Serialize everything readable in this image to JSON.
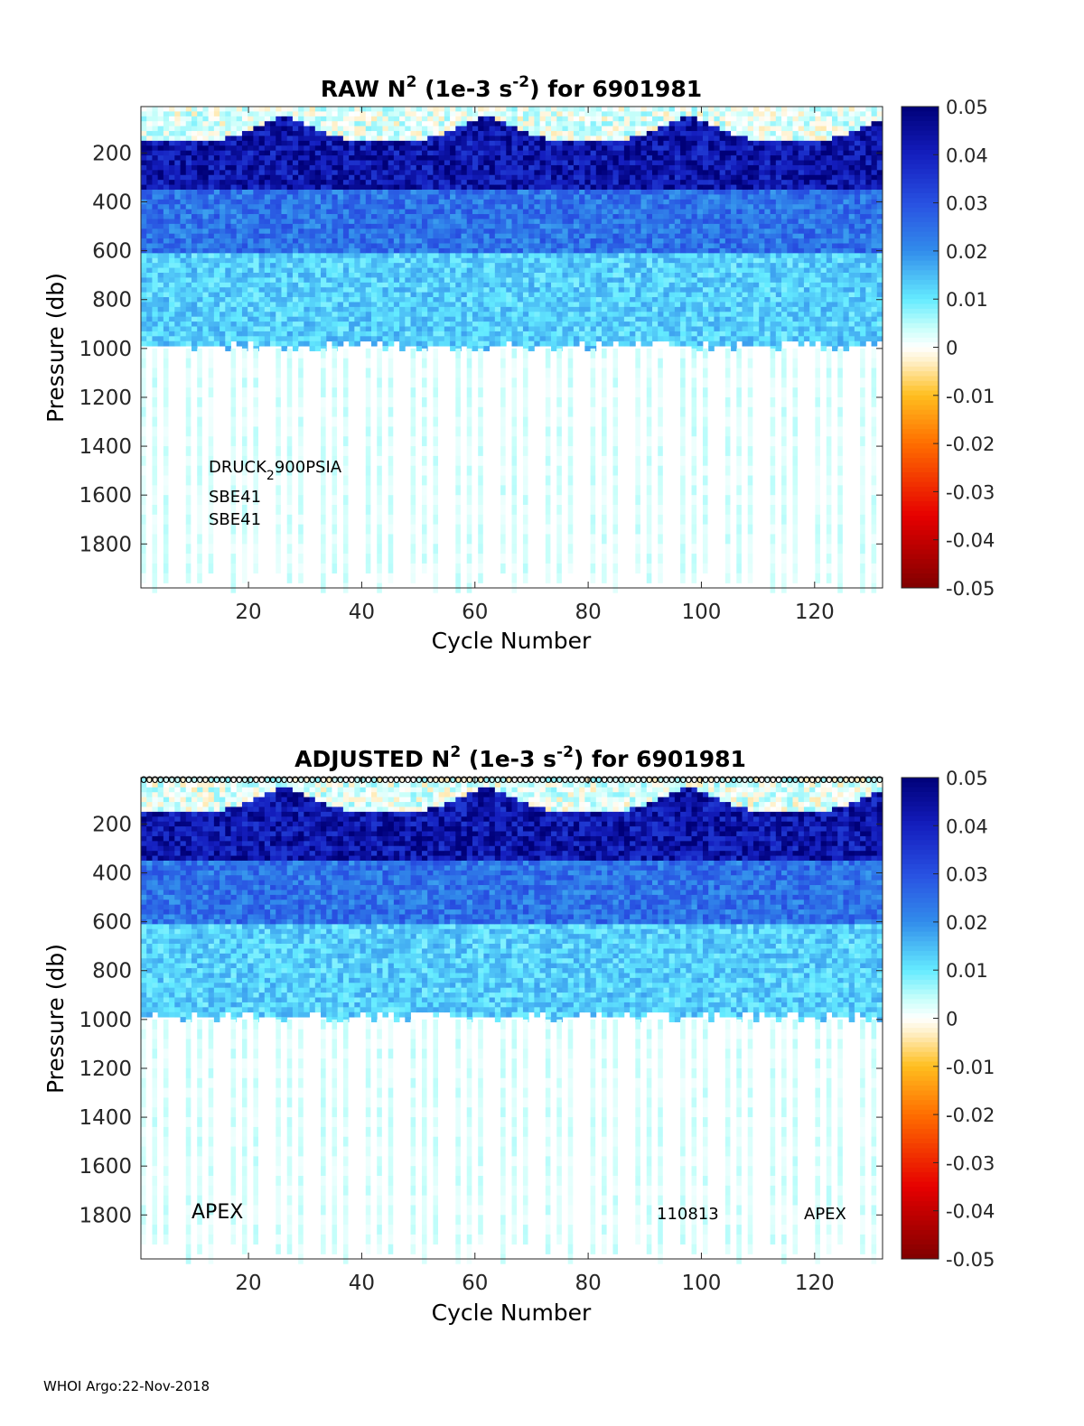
{
  "footer": "WHOI Argo:22-Nov-2018",
  "chart_data": [
    {
      "type": "heatmap",
      "title": {
        "prefix": "RAW N",
        "sup": "2",
        "mid": " (1e-3 s",
        "sup2": "-2",
        "suffix": ") for 6901981"
      },
      "xlabel": "Cycle Number",
      "ylabel": "Pressure (db)",
      "xlim": [
        1,
        132
      ],
      "ylim": [
        10,
        1980
      ],
      "x_ticks": [
        20,
        40,
        60,
        80,
        100,
        120
      ],
      "y_ticks": [
        200,
        400,
        600,
        800,
        1000,
        1200,
        1400,
        1600,
        1800
      ],
      "colorbar": {
        "min": -0.05,
        "max": 0.05,
        "ticks": [
          0.05,
          0.04,
          0.03,
          0.02,
          0.01,
          0,
          -0.01,
          -0.02,
          -0.03,
          -0.04,
          -0.05
        ],
        "colormap": "jet-white-center"
      },
      "profile_cycles_deep": "every 3-4 cycles",
      "annotations": {
        "sensor_p_main": "DRUCK",
        "sensor_p_sub": "2",
        "sensor_p_tail": "900PSIA",
        "sensor_t": "SBE41",
        "sensor_s": "SBE41"
      },
      "zones": [
        {
          "pmin": 10,
          "pmax": 100,
          "value_range": [
            -0.01,
            0.005
          ],
          "note": "near-surface mixed layer, lighter values"
        },
        {
          "pmin": 100,
          "pmax": 350,
          "value_range": [
            0.035,
            0.05
          ]
        },
        {
          "pmin": 350,
          "pmax": 600,
          "value_range": [
            0.02,
            0.03
          ]
        },
        {
          "pmin": 600,
          "pmax": 1000,
          "value_range": [
            0.008,
            0.018
          ]
        },
        {
          "pmin": 1000,
          "pmax": 1980,
          "value_range": [
            0.0,
            0.004
          ]
        }
      ]
    },
    {
      "type": "heatmap",
      "title": {
        "prefix": "ADJUSTED N",
        "sup": "2",
        "mid": " (1e-3 s",
        "sup2": "-2",
        "suffix": ") for 6901981"
      },
      "xlabel": "Cycle Number",
      "ylabel": "Pressure (db)",
      "xlim": [
        1,
        132
      ],
      "ylim": [
        10,
        1980
      ],
      "x_ticks": [
        20,
        40,
        60,
        80,
        100,
        120
      ],
      "y_ticks": [
        200,
        400,
        600,
        800,
        1000,
        1200,
        1400,
        1600,
        1800
      ],
      "colorbar": {
        "min": -0.05,
        "max": 0.05,
        "ticks": [
          0.05,
          0.04,
          0.03,
          0.02,
          0.01,
          0,
          -0.01,
          -0.02,
          -0.03,
          -0.04,
          -0.05
        ],
        "colormap": "jet-white-center"
      },
      "qc_marker": "o",
      "annotations": {
        "float_type_left": "APEX",
        "serial": "110813",
        "float_type_right": "APEX"
      },
      "zones": [
        {
          "pmin": 10,
          "pmax": 100,
          "value_range": [
            -0.01,
            0.005
          ]
        },
        {
          "pmin": 100,
          "pmax": 350,
          "value_range": [
            0.035,
            0.05
          ]
        },
        {
          "pmin": 350,
          "pmax": 600,
          "value_range": [
            0.02,
            0.03
          ]
        },
        {
          "pmin": 600,
          "pmax": 1000,
          "value_range": [
            0.008,
            0.018
          ]
        },
        {
          "pmin": 1000,
          "pmax": 1980,
          "value_range": [
            0.0,
            0.004
          ]
        }
      ]
    }
  ]
}
